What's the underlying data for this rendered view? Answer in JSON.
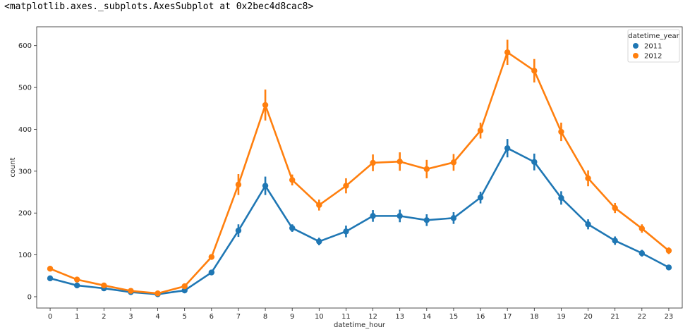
{
  "output_repr": "<matplotlib.axes._subplots.AxesSubplot at 0x2bec4d8cac8>",
  "chart_data": {
    "type": "line",
    "xlabel": "datetime_hour",
    "ylabel": "count",
    "categories": [
      "0",
      "1",
      "2",
      "3",
      "4",
      "5",
      "6",
      "7",
      "8",
      "9",
      "10",
      "11",
      "12",
      "13",
      "14",
      "15",
      "16",
      "17",
      "18",
      "19",
      "20",
      "21",
      "22",
      "23"
    ],
    "ylim": [
      -27,
      645
    ],
    "yticks": [
      0,
      100,
      200,
      300,
      400,
      500,
      600
    ],
    "grid": false,
    "legend": {
      "title": "datetime_year",
      "placement": "top-right"
    },
    "series": [
      {
        "name": "2011",
        "color": "#1f77b4",
        "values": [
          44,
          27,
          20,
          11,
          6,
          15,
          58,
          158,
          265,
          164,
          132,
          156,
          193,
          193,
          183,
          188,
          237,
          355,
          322,
          236,
          173,
          134,
          104,
          70
        ],
        "errors": [
          5,
          3,
          3,
          2,
          1,
          2,
          4,
          15,
          22,
          9,
          9,
          14,
          14,
          15,
          14,
          14,
          14,
          22,
          20,
          16,
          12,
          10,
          8,
          5
        ]
      },
      {
        "name": "2012",
        "color": "#ff7f0e",
        "values": [
          67,
          41,
          27,
          14,
          8,
          25,
          95,
          268,
          458,
          279,
          219,
          265,
          320,
          323,
          305,
          321,
          397,
          584,
          540,
          394,
          283,
          212,
          163,
          110
        ],
        "errors": [
          6,
          4,
          4,
          3,
          2,
          4,
          6,
          25,
          37,
          13,
          13,
          18,
          20,
          22,
          22,
          20,
          19,
          30,
          28,
          22,
          19,
          12,
          10,
          8
        ]
      }
    ]
  }
}
